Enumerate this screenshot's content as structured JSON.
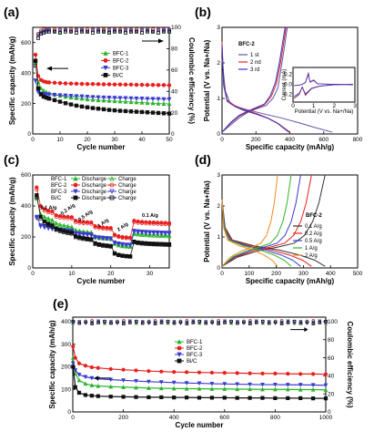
{
  "figure": {
    "panels": [
      "(a)",
      "(b)",
      "(c)",
      "(d)",
      "(e)"
    ]
  },
  "chart_data": [
    {
      "panel": "(a)",
      "type": "scatter",
      "xlabel": "Cycle number",
      "ylabel": "Specific capacity (mAh/g)",
      "ylabel_right": "Coulombic efficiency (%)",
      "xlim": [
        0,
        50
      ],
      "ylim": [
        0,
        700
      ],
      "ylim_right": [
        0,
        100
      ],
      "xticks": [
        0,
        10,
        20,
        30,
        40,
        50
      ],
      "yticks": [
        0,
        200,
        400,
        600
      ],
      "yticks_right": [
        0,
        20,
        40,
        60,
        80,
        100
      ],
      "x": [
        1,
        2,
        3,
        4,
        5,
        6,
        8,
        10,
        12,
        14,
        16,
        18,
        20,
        22,
        24,
        26,
        28,
        30,
        32,
        34,
        36,
        38,
        40,
        42,
        44,
        46,
        48,
        50
      ],
      "series": [
        {
          "name": "BFC-1",
          "color": "#2db52d",
          "marker": "triangle-up",
          "values": [
            470,
            340,
            300,
            285,
            275,
            268,
            260,
            252,
            245,
            240,
            236,
            232,
            228,
            225,
            222,
            220,
            218,
            216,
            214,
            212,
            210,
            208,
            206,
            204,
            202,
            200,
            199,
            198
          ]
        },
        {
          "name": "BFC-2",
          "color": "#e8201f",
          "marker": "circle",
          "values": [
            520,
            380,
            355,
            345,
            340,
            338,
            336,
            334,
            332,
            331,
            330,
            329,
            328,
            328,
            327,
            326,
            326,
            325,
            325,
            324,
            324,
            323,
            323,
            322,
            322,
            321,
            321,
            320
          ]
        },
        {
          "name": "BFC-3",
          "color": "#3a3ad0",
          "marker": "triangle-down",
          "values": [
            350,
            275,
            265,
            262,
            260,
            258,
            256,
            254,
            252,
            250,
            248,
            246,
            244,
            242,
            240,
            239,
            238,
            237,
            236,
            235,
            234,
            233,
            232,
            231,
            230,
            229,
            228,
            228
          ]
        },
        {
          "name": "Bi/C",
          "color": "#111111",
          "marker": "square",
          "values": [
            480,
            300,
            260,
            245,
            238,
            232,
            222,
            212,
            202,
            194,
            186,
            180,
            175,
            170,
            166,
            162,
            158,
            155,
            152,
            150,
            148,
            146,
            144,
            142,
            140,
            138,
            136,
            134
          ]
        }
      ],
      "efficiency_series": [
        {
          "name": "BFC-1",
          "color": "#2db52d",
          "values": [
            70,
            93,
            96,
            97,
            97,
            98,
            97,
            96,
            98,
            97,
            98,
            97,
            96,
            98,
            97,
            98,
            96,
            97,
            98,
            97,
            96,
            97,
            98,
            97,
            96,
            98,
            97,
            97
          ]
        },
        {
          "name": "BFC-2",
          "color": "#e8201f",
          "values": [
            68,
            94,
            97,
            98,
            98,
            98,
            98,
            98,
            98,
            98,
            98,
            98,
            98,
            98,
            98,
            98,
            98,
            98,
            98,
            98,
            98,
            98,
            98,
            98,
            98,
            98,
            98,
            98
          ]
        },
        {
          "name": "BFC-3",
          "color": "#3a3ad0",
          "values": [
            66,
            92,
            95,
            96,
            97,
            97,
            96,
            97,
            97,
            96,
            97,
            97,
            96,
            97,
            97,
            96,
            97,
            97,
            96,
            97,
            97,
            96,
            97,
            97,
            96,
            97,
            97,
            97
          ]
        },
        {
          "name": "Bi/C",
          "color": "#111111",
          "values": [
            64,
            90,
            94,
            95,
            96,
            96,
            96,
            95,
            96,
            96,
            95,
            96,
            96,
            95,
            96,
            96,
            95,
            96,
            96,
            95,
            96,
            96,
            95,
            96,
            96,
            95,
            96,
            96
          ]
        }
      ]
    },
    {
      "panel": "(b)",
      "type": "line",
      "title": "BFC-2",
      "xlabel": "Specific capacity (mAh/g)",
      "ylabel": "Potential (V vs. Na+/Na)",
      "xlim": [
        0,
        800
      ],
      "ylim": [
        0,
        3
      ],
      "xticks": [
        0,
        200,
        400,
        600,
        800
      ],
      "yticks": [
        0,
        1,
        2,
        3
      ],
      "series": [
        {
          "name": "1 st",
          "color": "#5a5aa8",
          "discharge": [
            [
              0,
              2.1
            ],
            [
              20,
              1.2
            ],
            [
              50,
              0.85
            ],
            [
              100,
              0.75
            ],
            [
              150,
              0.68
            ],
            [
              200,
              0.62
            ],
            [
              260,
              0.55
            ],
            [
              350,
              0.45
            ],
            [
              450,
              0.32
            ],
            [
              550,
              0.18
            ],
            [
              650,
              0.05
            ]
          ],
          "charge": [
            [
              0,
              0.05
            ],
            [
              50,
              0.25
            ],
            [
              100,
              0.45
            ],
            [
              150,
              0.6
            ],
            [
              200,
              0.7
            ],
            [
              260,
              0.8
            ],
            [
              300,
              1.0
            ],
            [
              330,
              1.3
            ],
            [
              350,
              1.9
            ],
            [
              370,
              2.5
            ],
            [
              385,
              3.0
            ]
          ]
        },
        {
          "name": "2 nd",
          "color": "#e8201f",
          "discharge": [
            [
              0,
              2.6
            ],
            [
              10,
              1.4
            ],
            [
              30,
              0.95
            ],
            [
              80,
              0.78
            ],
            [
              130,
              0.68
            ],
            [
              200,
              0.58
            ],
            [
              270,
              0.45
            ],
            [
              330,
              0.3
            ],
            [
              380,
              0.12
            ],
            [
              400,
              0.05
            ]
          ],
          "charge": [
            [
              0,
              0.05
            ],
            [
              50,
              0.3
            ],
            [
              100,
              0.5
            ],
            [
              150,
              0.62
            ],
            [
              200,
              0.72
            ],
            [
              250,
              0.82
            ],
            [
              290,
              1.05
            ],
            [
              320,
              1.4
            ],
            [
              345,
              2.0
            ],
            [
              365,
              2.6
            ],
            [
              378,
              3.0
            ]
          ]
        },
        {
          "name": "3 rd",
          "color": "#3333cc",
          "discharge": [
            [
              0,
              2.5
            ],
            [
              10,
              1.35
            ],
            [
              30,
              0.92
            ],
            [
              80,
              0.76
            ],
            [
              130,
              0.66
            ],
            [
              200,
              0.56
            ],
            [
              270,
              0.44
            ],
            [
              330,
              0.29
            ],
            [
              375,
              0.12
            ],
            [
              395,
              0.05
            ]
          ],
          "charge": [
            [
              0,
              0.05
            ],
            [
              50,
              0.32
            ],
            [
              100,
              0.52
            ],
            [
              150,
              0.64
            ],
            [
              200,
              0.74
            ],
            [
              250,
              0.84
            ],
            [
              285,
              1.08
            ],
            [
              315,
              1.45
            ],
            [
              340,
              2.05
            ],
            [
              360,
              2.65
            ],
            [
              372,
              3.0
            ]
          ]
        }
      ],
      "inset": {
        "xlabel": "Potential (V vs. Na+/Na)",
        "ylabel": "Current (mA)",
        "xticks": [
          0,
          1,
          2,
          3
        ],
        "yticks": [
          "-0.2",
          "0.0",
          "0.2"
        ]
      }
    },
    {
      "panel": "(c)",
      "type": "scatter",
      "xlabel": "Cycle number",
      "ylabel": "Specific capacity (mAh/g)",
      "xlim": [
        0,
        35
      ],
      "ylim": [
        0,
        600
      ],
      "xticks": [
        0,
        10,
        20,
        30
      ],
      "yticks": [
        0,
        200,
        400,
        600
      ],
      "legend_columns": [
        "Discharge",
        "Charge"
      ],
      "rate_annotations": [
        "0.1 A/g",
        "0.2 A/g",
        "0.5 A/g",
        "1 A/g",
        "2 A/g",
        "0.1 A/g"
      ],
      "x": [
        1,
        2,
        3,
        4,
        5,
        6,
        7,
        8,
        9,
        10,
        11,
        12,
        13,
        14,
        15,
        16,
        17,
        18,
        19,
        20,
        21,
        22,
        23,
        24,
        25,
        26,
        27,
        28,
        29,
        30,
        31,
        32,
        33,
        34,
        35
      ],
      "series": [
        {
          "name": "BFC-1",
          "color": "#2db52d",
          "values": [
            460,
            350,
            330,
            320,
            310,
            290,
            280,
            275,
            270,
            265,
            245,
            240,
            236,
            233,
            230,
            205,
            200,
            197,
            195,
            193,
            160,
            150,
            145,
            142,
            140,
            225,
            222,
            220,
            218,
            216,
            215,
            214,
            213,
            212,
            211
          ]
        },
        {
          "name": "BFC-2",
          "color": "#e8201f",
          "values": [
            520,
            400,
            380,
            370,
            365,
            340,
            335,
            332,
            330,
            328,
            305,
            300,
            298,
            296,
            294,
            270,
            265,
            262,
            260,
            258,
            215,
            205,
            200,
            198,
            196,
            305,
            300,
            298,
            296,
            295,
            294,
            293,
            292,
            291,
            290
          ]
        },
        {
          "name": "BFC-3",
          "color": "#3a3ad0",
          "values": [
            330,
            275,
            268,
            262,
            258,
            250,
            247,
            245,
            243,
            241,
            225,
            222,
            220,
            218,
            216,
            200,
            197,
            195,
            193,
            191,
            165,
            158,
            154,
            151,
            150,
            240,
            237,
            235,
            233,
            232,
            231,
            230,
            229,
            228,
            227
          ]
        },
        {
          "name": "Bi/C",
          "color": "#111111",
          "values": [
            470,
            330,
            300,
            285,
            275,
            255,
            245,
            238,
            232,
            228,
            205,
            198,
            193,
            189,
            186,
            160,
            153,
            148,
            145,
            142,
            95,
            85,
            80,
            77,
            75,
            170,
            165,
            162,
            160,
            158,
            157,
            156,
            155,
            154,
            153
          ]
        }
      ]
    },
    {
      "panel": "(d)",
      "type": "line",
      "title": "BFC-2",
      "xlabel": "Specific capacity (mAh/g)",
      "ylabel": "Potential (V vs. Na+/Na)",
      "xlim": [
        0,
        500
      ],
      "ylim": [
        0,
        3
      ],
      "xticks": [
        0,
        100,
        200,
        300,
        400,
        500
      ],
      "yticks": [
        0,
        1,
        2,
        3
      ],
      "series": [
        {
          "name": "0.1 A/g",
          "color": "#333333",
          "capacity": 380
        },
        {
          "name": "0.2 A/g",
          "color": "#e8201f",
          "capacity": 330
        },
        {
          "name": "0.5 A/g",
          "color": "#3a3ad0",
          "capacity": 290
        },
        {
          "name": "1 A/g",
          "color": "#2db52d",
          "capacity": 255
        },
        {
          "name": "2 A/g",
          "color": "#f08a1e",
          "capacity": 205
        }
      ]
    },
    {
      "panel": "(e)",
      "type": "scatter",
      "xlabel": "Cycle number",
      "ylabel": "Specific capacity (mAh/g)",
      "ylabel_right": "Coulombic efficiency (%)",
      "xlim": [
        0,
        1000
      ],
      "ylim": [
        0,
        420
      ],
      "ylim_right": [
        0,
        105
      ],
      "xticks": [
        0,
        200,
        400,
        600,
        800,
        1000
      ],
      "yticks": [
        0,
        100,
        200,
        300,
        400
      ],
      "yticks_right": [
        0,
        20,
        40,
        60,
        80,
        100
      ],
      "x": [
        1,
        10,
        25,
        50,
        75,
        100,
        150,
        200,
        250,
        300,
        350,
        400,
        450,
        500,
        550,
        600,
        650,
        700,
        750,
        800,
        850,
        900,
        950,
        1000
      ],
      "series": [
        {
          "name": "BFC-1",
          "color": "#2db52d",
          "values": [
            240,
            170,
            140,
            125,
            118,
            115,
            112,
            110,
            108,
            106,
            105,
            104,
            103,
            103,
            102,
            102,
            101,
            101,
            100,
            100,
            100,
            99,
            99,
            98
          ]
        },
        {
          "name": "BFC-2",
          "color": "#e8201f",
          "values": [
            290,
            240,
            215,
            205,
            198,
            195,
            190,
            187,
            184,
            181,
            179,
            177,
            176,
            175,
            174,
            173,
            172,
            171,
            170,
            170,
            169,
            168,
            168,
            167
          ]
        },
        {
          "name": "BFC-3",
          "color": "#3a3ad0",
          "values": [
            215,
            185,
            165,
            155,
            150,
            147,
            143,
            140,
            137,
            134,
            132,
            130,
            128,
            127,
            125,
            124,
            123,
            122,
            121,
            121,
            120,
            120,
            119,
            118
          ]
        },
        {
          "name": "Bi/C",
          "color": "#111111",
          "values": [
            200,
            110,
            85,
            75,
            72,
            70,
            68,
            67,
            66,
            65,
            65,
            64,
            64,
            63,
            63,
            63,
            62,
            62,
            62,
            61,
            61,
            61,
            60,
            60
          ]
        }
      ],
      "efficiency_series": [
        {
          "name": "BFC-1",
          "color": "#2db52d",
          "value": 99.5
        },
        {
          "name": "BFC-2",
          "color": "#e8201f",
          "value": 99.8
        },
        {
          "name": "BFC-3",
          "color": "#3a3ad0",
          "value": 99.3
        },
        {
          "name": "Bi/C",
          "color": "#111111",
          "value": 99.0
        }
      ]
    }
  ]
}
